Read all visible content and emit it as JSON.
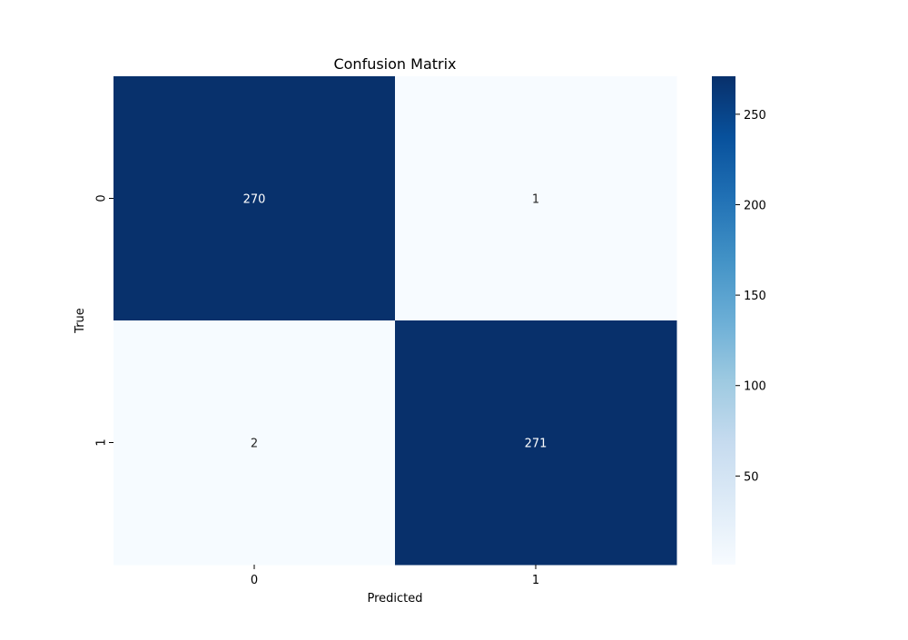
{
  "chart_data": {
    "type": "heatmap",
    "title": "Confusion Matrix",
    "xlabel": "Predicted",
    "ylabel": "True",
    "x_categories": [
      "0",
      "1"
    ],
    "y_categories": [
      "0",
      "1"
    ],
    "matrix": [
      [
        270,
        1
      ],
      [
        2,
        271
      ]
    ],
    "colormap": "Blues",
    "vmin": 1,
    "vmax": 271,
    "colorbar": {
      "ticks": [
        50,
        100,
        150,
        200,
        250
      ],
      "tick_labels": [
        "50",
        "100",
        "150",
        "200",
        "250"
      ]
    },
    "colors": {
      "low": "#f7fbff",
      "high": "#08306b"
    }
  }
}
